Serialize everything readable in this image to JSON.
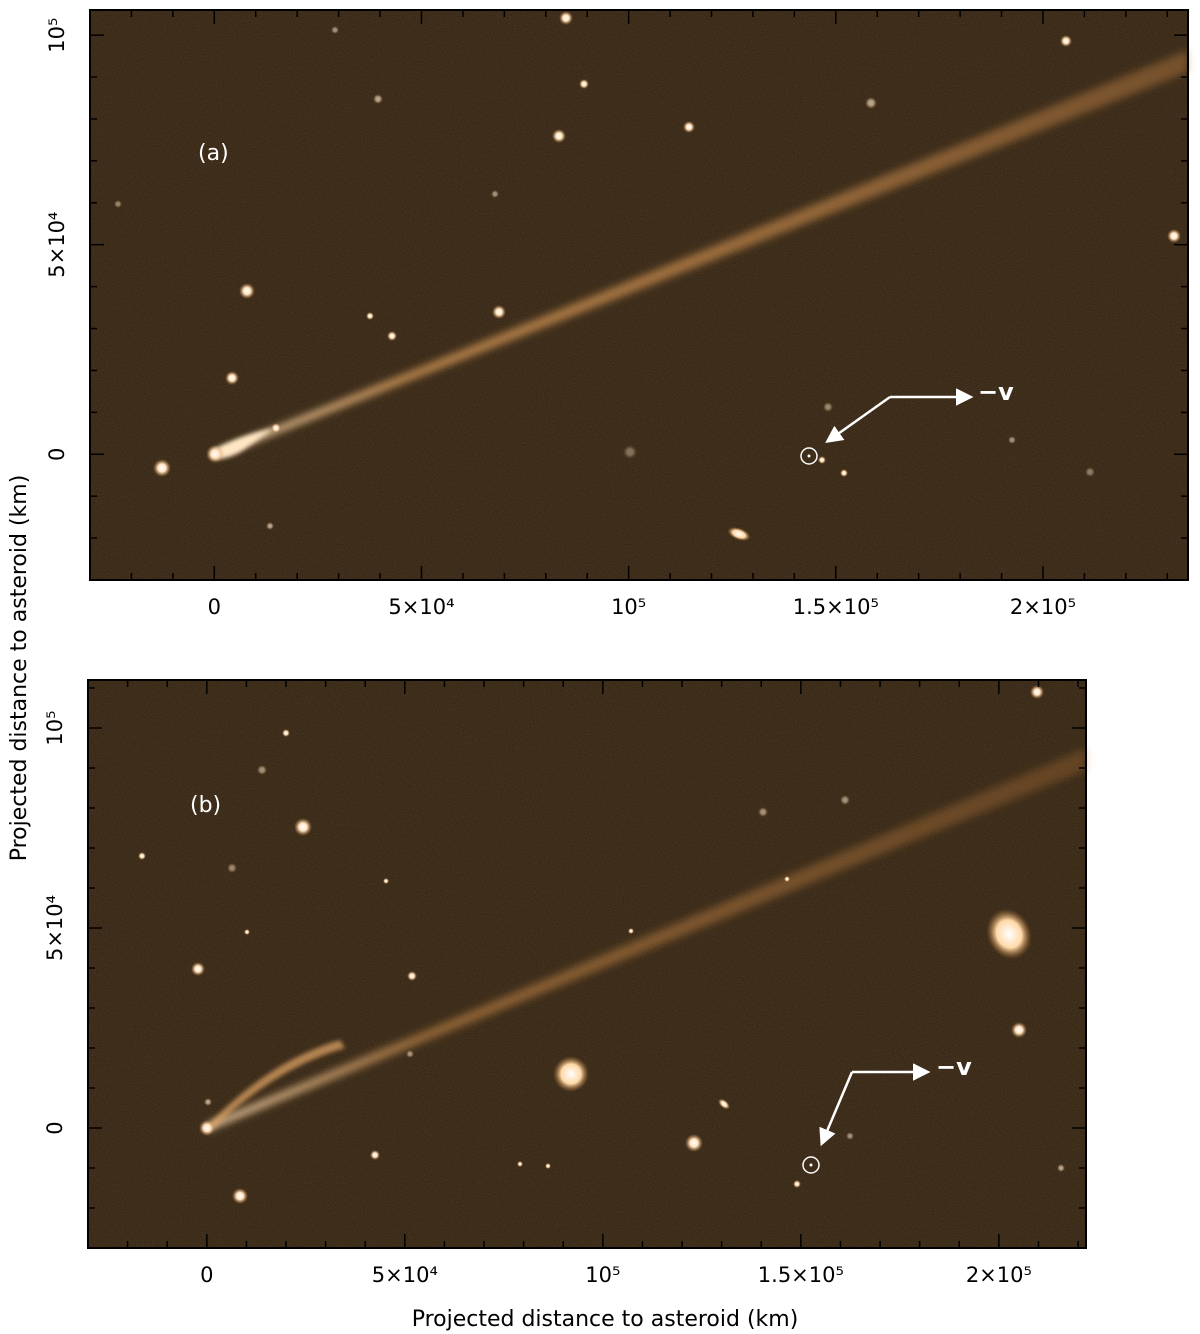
{
  "figure": {
    "y_axis_title": "Projected distance to asteroid (km)",
    "x_axis_title": "Projected distance to asteroid (km)",
    "colors": {
      "background": "#2d1f10",
      "tail": "#c8894a",
      "star": "#ffe8cc",
      "frame": "#000000",
      "annotation": "#ffffff"
    }
  },
  "panels": [
    {
      "label": "(a)",
      "velocity_label": "−v",
      "x_range": [
        -30000,
        235000
      ],
      "y_range": [
        -30000,
        106000
      ],
      "x_ticks": [
        {
          "value": 0,
          "label": "0"
        },
        {
          "value": 50000,
          "label": "5×10⁴"
        },
        {
          "value": 100000,
          "label": "10⁵"
        },
        {
          "value": 150000,
          "label": "1.5×10⁵"
        },
        {
          "value": 200000,
          "label": "2×10⁵"
        }
      ],
      "y_ticks": [
        {
          "value": 0,
          "label": "0"
        },
        {
          "value": 50000,
          "label": "5×10⁴"
        },
        {
          "value": 100000,
          "label": "10⁵"
        }
      ]
    },
    {
      "label": "(b)",
      "velocity_label": "−v",
      "x_range": [
        -30000,
        222000
      ],
      "y_range": [
        -30000,
        112000
      ],
      "x_ticks": [
        {
          "value": 0,
          "label": "0"
        },
        {
          "value": 50000,
          "label": "5×10⁴"
        },
        {
          "value": 100000,
          "label": "10⁵"
        },
        {
          "value": 150000,
          "label": "1.5×10⁵"
        },
        {
          "value": 200000,
          "label": "2×10⁵"
        }
      ],
      "y_ticks": [
        {
          "value": 0,
          "label": "0"
        },
        {
          "value": 50000,
          "label": "5×10⁴"
        },
        {
          "value": 100000,
          "label": "10⁵"
        }
      ]
    }
  ]
}
